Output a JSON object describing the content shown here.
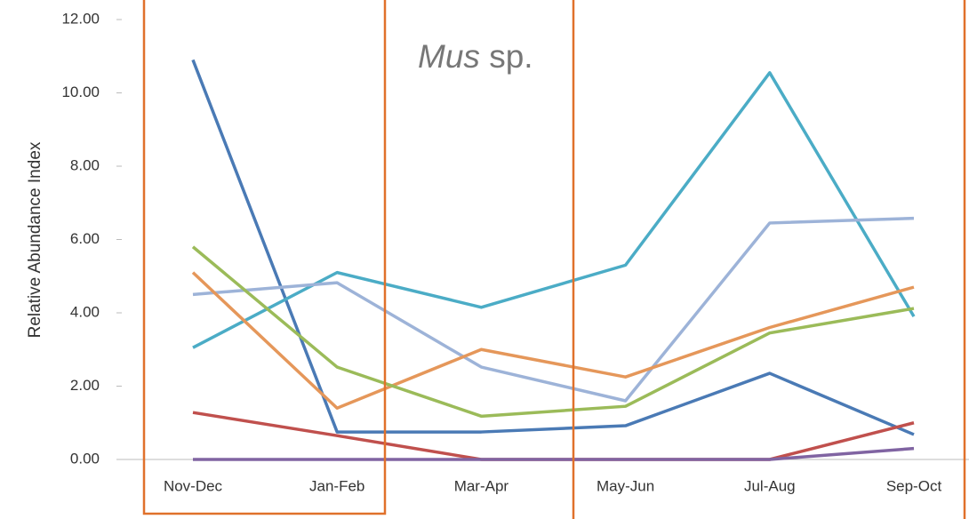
{
  "chart_data": {
    "type": "line",
    "annotation": [
      "Mus",
      "sp."
    ],
    "y_label": "Relative Abundance Index",
    "categories": [
      "Nov-Dec",
      "Jan-Feb",
      "Mar-Apr",
      "May-Jun",
      "Jul-Aug",
      "Sep-Oct"
    ],
    "series": [
      {
        "color": "#4a7ab5",
        "values": [
          10.9,
          0.75,
          0.75,
          0.92,
          2.35,
          0.68
        ]
      },
      {
        "color": "#4bacc6",
        "values": [
          3.05,
          5.1,
          4.15,
          5.3,
          10.55,
          3.9
        ]
      },
      {
        "color": "#9db3d8",
        "values": [
          4.5,
          4.82,
          2.52,
          1.6,
          6.45,
          6.58
        ]
      },
      {
        "color": "#e5975a",
        "values": [
          5.1,
          1.4,
          3.0,
          2.25,
          3.6,
          4.7
        ]
      },
      {
        "color": "#9bbb59",
        "values": [
          5.8,
          2.52,
          1.18,
          1.45,
          3.45,
          4.12
        ]
      },
      {
        "color": "#c0504d",
        "values": [
          1.28,
          0.65,
          0,
          0,
          0,
          1.0
        ]
      },
      {
        "color": "#8064a2",
        "values": [
          0,
          0,
          0,
          0,
          0,
          0.3
        ]
      }
    ],
    "ylim": [
      0,
      12
    ],
    "yticks": [
      {
        "value": 0,
        "label": "0.00"
      },
      {
        "value": 2,
        "label": "2.00"
      },
      {
        "value": 4,
        "label": "4.00"
      },
      {
        "value": 6,
        "label": "6.00"
      },
      {
        "value": 8,
        "label": "8.00"
      },
      {
        "value": 10,
        "label": "10.00"
      },
      {
        "value": 12,
        "label": "12.00"
      }
    ]
  }
}
